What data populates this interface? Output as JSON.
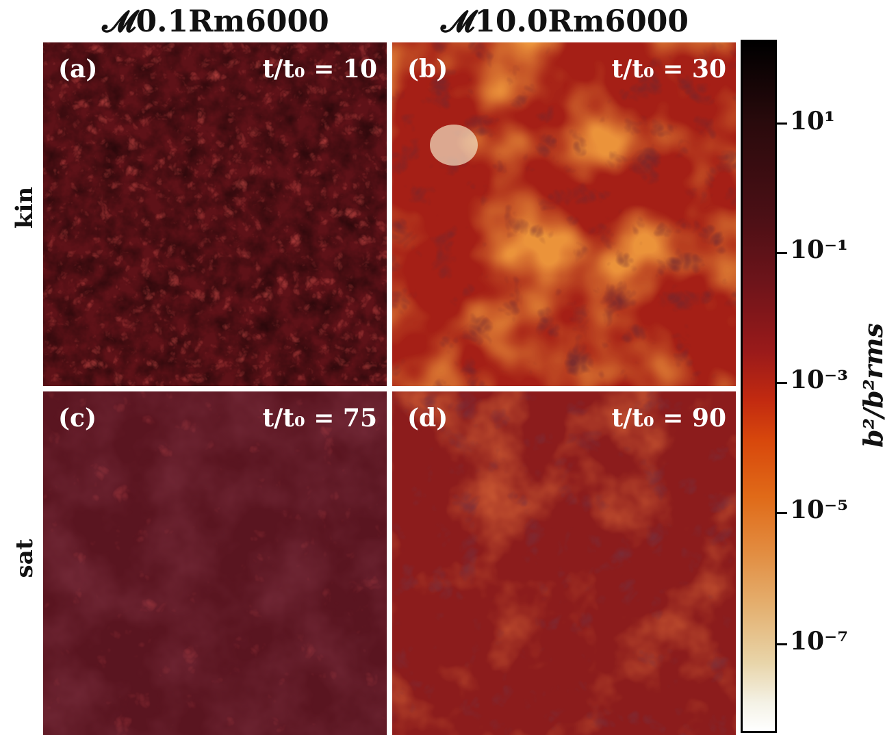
{
  "columns": [
    {
      "title": "𝓜0.1Rm6000"
    },
    {
      "title": "𝓜10.0Rm6000"
    }
  ],
  "rows": [
    {
      "label": "kin"
    },
    {
      "label": "sat"
    }
  ],
  "panels": [
    {
      "letter": "(a)",
      "time": "t/t₀ = 10"
    },
    {
      "letter": "(b)",
      "time": "t/t₀ = 30"
    },
    {
      "letter": "(c)",
      "time": "t/t₀ = 75"
    },
    {
      "letter": "(d)",
      "time": "t/t₀ = 90"
    }
  ],
  "colorbar": {
    "label": "b²/b²rms",
    "scale": "log",
    "ticks": [
      "10¹",
      "10⁻¹",
      "10⁻³",
      "10⁻⁵",
      "10⁻⁷"
    ],
    "colormap": [
      "#000000",
      "#4a0f15",
      "#9a1a1a",
      "#d8480c",
      "#e28c40",
      "#e8d4a8",
      "#ffffff"
    ]
  }
}
